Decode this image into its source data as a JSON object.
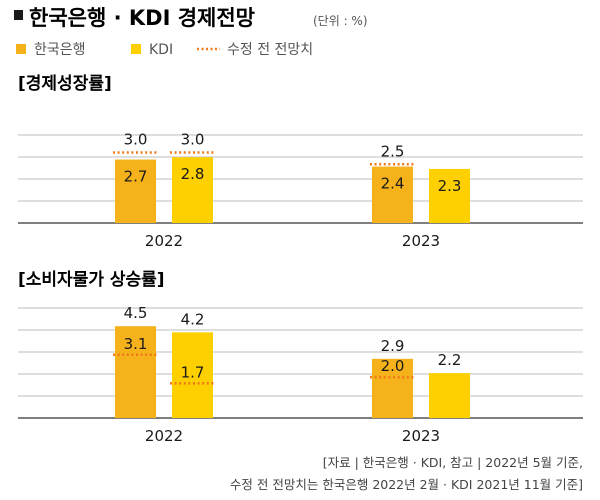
{
  "title": "한국은행 · KDI 경제전망",
  "unit": "(단위 : %)",
  "colors": {
    "bok": "#f5b21a",
    "kdi": "#ffd000",
    "prior": "#f07a1a",
    "grid": "#bdbdbd",
    "axis": "#333333"
  },
  "legend": {
    "bok": "한국은행",
    "kdi": "KDI",
    "prior": "수정 전 전망치"
  },
  "source": {
    "line1": "[자료 | 한국은행 · KDI, 참고 | 2022년 5월 기준,",
    "line2": "수정 전 전망치는 한국은행 2022년 2월 · KDI 2021년 11월 기준]"
  },
  "chart_data": [
    {
      "type": "bar",
      "title": "[경제성장률]",
      "categories": [
        "2022",
        "2023"
      ],
      "series": [
        {
          "name": "한국은행",
          "values": [
            2.7,
            2.4
          ],
          "prior_forecast": [
            3.0,
            2.5
          ]
        },
        {
          "name": "KDI",
          "values": [
            2.8,
            2.3
          ],
          "prior_forecast": [
            3.0,
            null
          ]
        }
      ],
      "ylim": [
        0,
        3.5
      ]
    },
    {
      "type": "bar",
      "title": "[소비자물가 상승률]",
      "categories": [
        "2022",
        "2023"
      ],
      "series": [
        {
          "name": "한국은행",
          "values": [
            4.5,
            2.9
          ],
          "prior_forecast": [
            3.1,
            2.0
          ]
        },
        {
          "name": "KDI",
          "values": [
            4.2,
            2.2
          ],
          "prior_forecast": [
            1.7,
            null
          ]
        }
      ],
      "ylim": [
        0,
        5.0
      ]
    }
  ]
}
